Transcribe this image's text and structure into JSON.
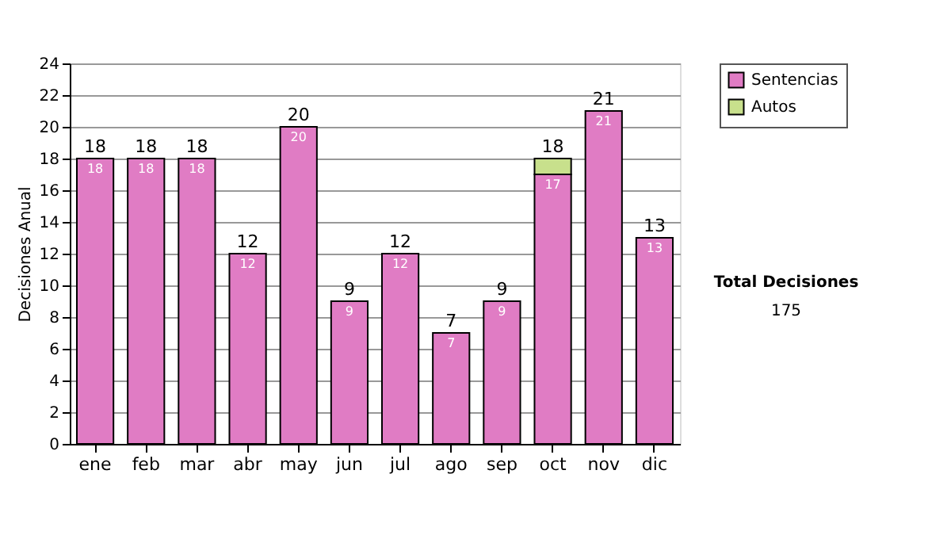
{
  "chart_data": {
    "type": "bar",
    "stacked": true,
    "ylabel": "Decisiones Anual",
    "categories": [
      "ene",
      "feb",
      "mar",
      "abr",
      "may",
      "jun",
      "jul",
      "ago",
      "sep",
      "oct",
      "nov",
      "dic"
    ],
    "series": [
      {
        "name": "Sentencias",
        "color": "#e07cc4",
        "values": [
          18,
          18,
          18,
          12,
          20,
          9,
          12,
          7,
          9,
          17,
          21,
          13
        ],
        "value_labels": [
          "18",
          "18",
          "18",
          "12",
          "20",
          "9",
          "12",
          "7",
          "9",
          "17",
          "21",
          "13"
        ]
      },
      {
        "name": "Autos",
        "color": "#c8e08c",
        "values": [
          null,
          null,
          null,
          null,
          null,
          null,
          null,
          null,
          null,
          1,
          null,
          null
        ]
      }
    ],
    "totals": [
      "18",
      "18",
      "18",
      "12",
      "20",
      "9",
      "12",
      "7",
      "9",
      "18",
      "21",
      "13"
    ],
    "ylim": [
      0,
      24
    ],
    "yticks": [
      0,
      2,
      4,
      6,
      8,
      10,
      12,
      14,
      16,
      18,
      20,
      22,
      24
    ],
    "grid": "y",
    "legend": "right",
    "annotations": [
      "Total Decisiones",
      "175"
    ]
  }
}
